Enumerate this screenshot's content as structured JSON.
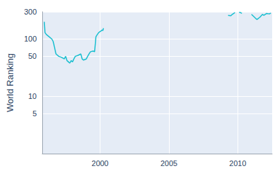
{
  "chart_data": {
    "type": "line",
    "ylabel": "World Ranking",
    "x": [
      1995.95,
      1996.0,
      1996.1,
      1996.3,
      1996.5,
      1996.6,
      1996.7,
      1996.8,
      1997.0,
      1997.2,
      1997.4,
      1997.5,
      1997.6,
      1997.7,
      1997.8,
      1997.9,
      1998.0,
      1998.1,
      1998.2,
      1998.4,
      1998.6,
      1998.7,
      1998.8,
      1999.0,
      1999.1,
      1999.2,
      1999.3,
      1999.5,
      1999.6,
      1999.65,
      1999.7,
      1999.8,
      1999.9,
      2000.0,
      2000.1,
      2000.15,
      2000.2,
      2000.25,
      2005.0,
      2009.3,
      2009.5,
      2009.6,
      2009.8,
      2009.95,
      2010.1,
      2010.2,
      2010.3,
      2010.6,
      2011.0,
      2011.3,
      2011.4,
      2011.6,
      2011.8,
      2011.9,
      2012.1,
      2012.3,
      2012.4
    ],
    "values": [
      200,
      130,
      120,
      110,
      100,
      90,
      70,
      55,
      50,
      48,
      45,
      50,
      42,
      40,
      38,
      42,
      40,
      45,
      50,
      52,
      55,
      45,
      43,
      45,
      50,
      55,
      60,
      62,
      60,
      80,
      110,
      120,
      130,
      135,
      140,
      145,
      140,
      155,
      null,
      260,
      255,
      270,
      290,
      null,
      295,
      290,
      280,
      null,
      270,
      230,
      220,
      240,
      270,
      260,
      280,
      275,
      285
    ],
    "color": "#17becf",
    "xlim": [
      1995.8,
      2012.5
    ],
    "xticks": [
      2000,
      2005,
      2010
    ],
    "ylim": [
      1,
      300
    ],
    "yticks": [
      5,
      10,
      50,
      100,
      300
    ],
    "log": "y",
    "grid": true
  }
}
